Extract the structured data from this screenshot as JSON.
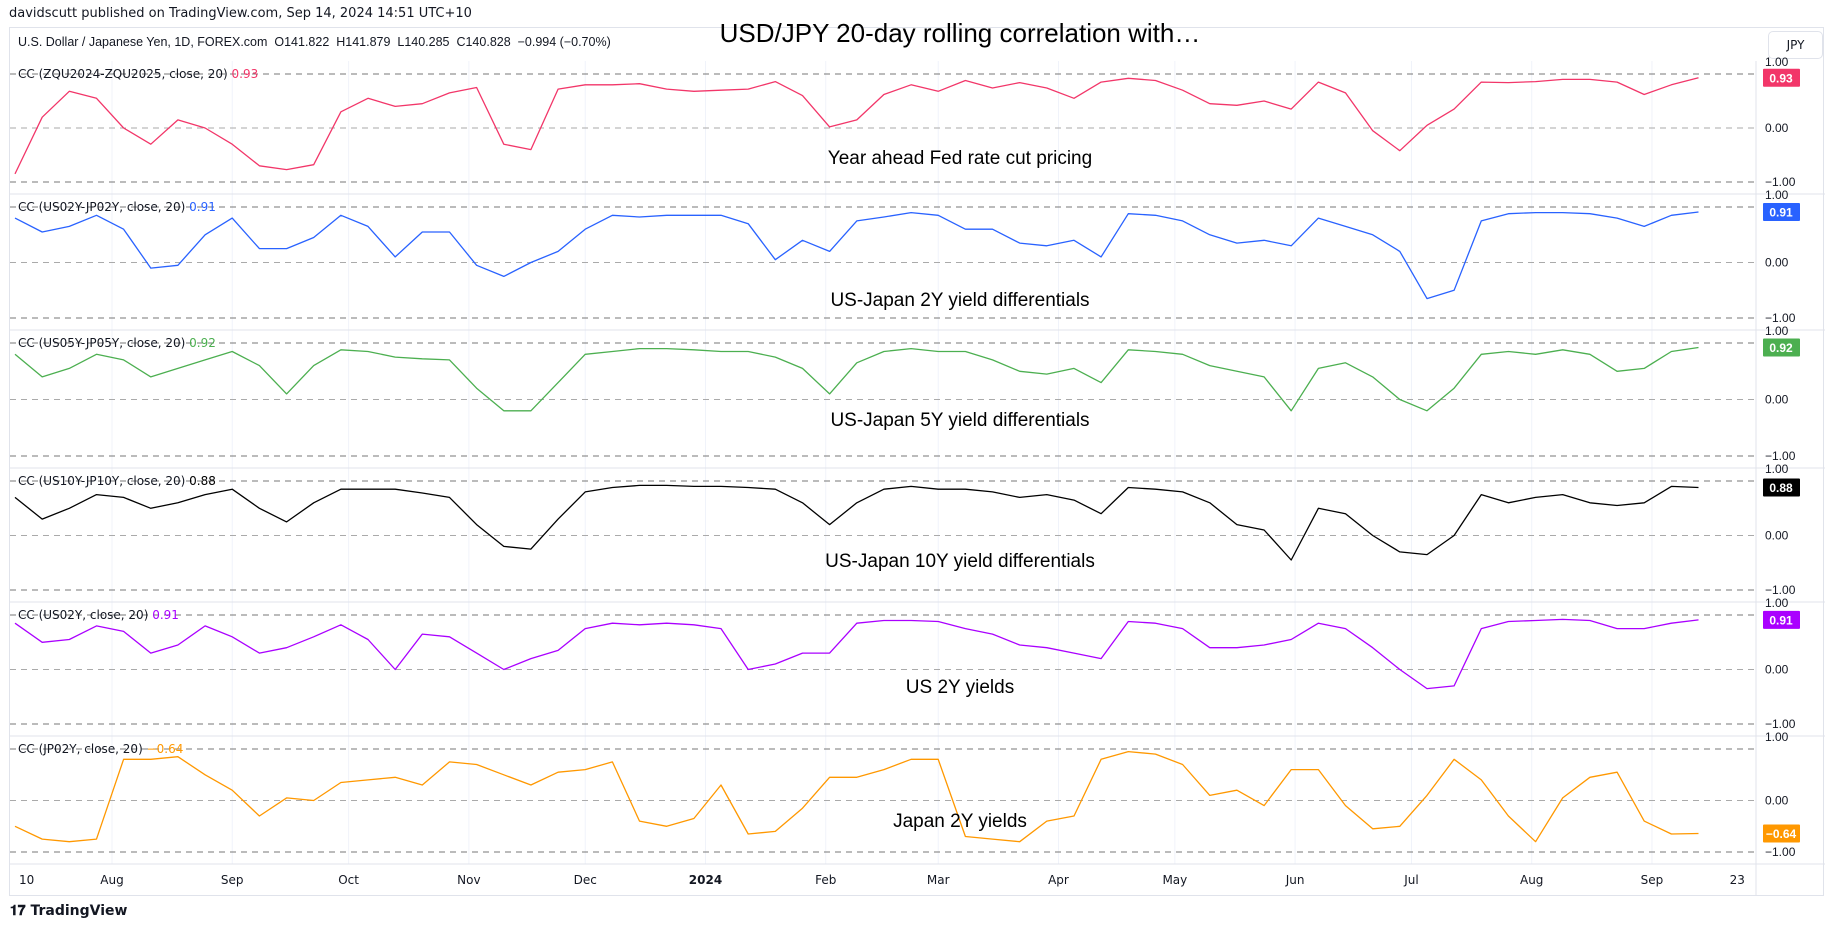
{
  "header": {
    "publisher": "davidscutt published on TradingView.com, Sep 14, 2024 14:51 UTC+10",
    "title": "USD/JPY 20-day rolling correlation with…",
    "symbol": "U.S. Dollar / Japanese Yen, 1D, FOREX.com  O141.822  H141.879  L140.285  C140.828  −0.994 (−0.70%)",
    "currency": "JPY"
  },
  "footer": {
    "logo": "TradingView"
  },
  "chart_data": {
    "type": "line",
    "x": [
      "2023-07-07",
      "2023-07-14",
      "2023-07-21",
      "2023-07-28",
      "2023-08-04",
      "2023-08-11",
      "2023-08-18",
      "2023-08-25",
      "2023-09-01",
      "2023-09-08",
      "2023-09-15",
      "2023-09-22",
      "2023-09-29",
      "2023-10-06",
      "2023-10-13",
      "2023-10-20",
      "2023-10-27",
      "2023-11-03",
      "2023-11-10",
      "2023-11-17",
      "2023-11-24",
      "2023-12-01",
      "2023-12-08",
      "2023-12-15",
      "2023-12-22",
      "2023-12-29",
      "2024-01-05",
      "2024-01-12",
      "2024-01-19",
      "2024-01-26",
      "2024-02-02",
      "2024-02-09",
      "2024-02-16",
      "2024-02-23",
      "2024-03-01",
      "2024-03-08",
      "2024-03-15",
      "2024-03-22",
      "2024-03-29",
      "2024-04-05",
      "2024-04-12",
      "2024-04-19",
      "2024-04-26",
      "2024-05-03",
      "2024-05-10",
      "2024-05-17",
      "2024-05-24",
      "2024-05-31",
      "2024-06-07",
      "2024-06-14",
      "2024-06-21",
      "2024-06-28",
      "2024-07-05",
      "2024-07-12",
      "2024-07-19",
      "2024-07-26",
      "2024-08-02",
      "2024-08-09",
      "2024-08-16",
      "2024-08-23",
      "2024-08-30",
      "2024-09-06",
      "2024-09-13"
    ],
    "ylim": [
      -1,
      1
    ],
    "yticks": [
      "1.00",
      "0.00",
      "−1.00"
    ],
    "xticks": [
      {
        "date": "2023-07-10",
        "label": "10"
      },
      {
        "date": "2023-08-01",
        "label": "Aug"
      },
      {
        "date": "2023-09-01",
        "label": "Sep"
      },
      {
        "date": "2023-10-01",
        "label": "Oct"
      },
      {
        "date": "2023-11-01",
        "label": "Nov"
      },
      {
        "date": "2023-12-01",
        "label": "Dec"
      },
      {
        "date": "2024-01-01",
        "label": "2024"
      },
      {
        "date": "2024-02-01",
        "label": "Feb"
      },
      {
        "date": "2024-03-01",
        "label": "Mar"
      },
      {
        "date": "2024-04-01",
        "label": "Apr"
      },
      {
        "date": "2024-05-01",
        "label": "May"
      },
      {
        "date": "2024-06-01",
        "label": "Jun"
      },
      {
        "date": "2024-07-01",
        "label": "Jul"
      },
      {
        "date": "2024-08-01",
        "label": "Aug"
      },
      {
        "date": "2024-09-01",
        "label": "Sep"
      },
      {
        "date": "2024-09-23",
        "label": "23"
      }
    ],
    "grid": true,
    "series": [
      {
        "name": "CC (ZQU2024-ZQU2025, close, 20)",
        "last": "0.93",
        "color": "#f23669",
        "annotation": "Year ahead Fed rate cut pricing",
        "values": [
          -0.85,
          0.2,
          0.68,
          0.55,
          0.0,
          -0.3,
          0.15,
          0.0,
          -0.3,
          -0.7,
          -0.77,
          -0.68,
          0.3,
          0.55,
          0.4,
          0.45,
          0.65,
          0.75,
          -0.3,
          -0.4,
          0.72,
          0.8,
          0.8,
          0.82,
          0.72,
          0.68,
          0.7,
          0.72,
          0.86,
          0.6,
          0.02,
          0.15,
          0.62,
          0.8,
          0.68,
          0.88,
          0.74,
          0.84,
          0.74,
          0.55,
          0.85,
          0.92,
          0.88,
          0.7,
          0.45,
          0.42,
          0.5,
          0.35,
          0.85,
          0.65,
          -0.05,
          -0.42,
          0.05,
          0.35,
          0.85,
          0.84,
          0.86,
          0.9,
          0.9,
          0.85,
          0.62,
          0.8,
          0.93
        ]
      },
      {
        "name": "CC (US02Y-JP02Y, close, 20)",
        "last": "0.91",
        "color": "#2962ff",
        "annotation": "US-Japan 2Y yield differentials",
        "values": [
          0.8,
          0.55,
          0.65,
          0.85,
          0.6,
          -0.1,
          -0.05,
          0.5,
          0.8,
          0.25,
          0.25,
          0.45,
          0.85,
          0.65,
          0.1,
          0.55,
          0.55,
          -0.05,
          -0.25,
          0.0,
          0.2,
          0.6,
          0.85,
          0.82,
          0.85,
          0.85,
          0.85,
          0.7,
          0.05,
          0.4,
          0.2,
          0.75,
          0.82,
          0.9,
          0.85,
          0.6,
          0.6,
          0.35,
          0.3,
          0.4,
          0.1,
          0.88,
          0.85,
          0.75,
          0.5,
          0.35,
          0.4,
          0.3,
          0.8,
          0.65,
          0.5,
          0.2,
          -0.65,
          -0.5,
          0.75,
          0.88,
          0.9,
          0.9,
          0.88,
          0.8,
          0.65,
          0.85,
          0.91
        ]
      },
      {
        "name": "CC (US05Y-JP05Y, close, 20)",
        "last": "0.92",
        "color": "#4caf50",
        "annotation": "US-Japan 5Y yield differentials",
        "values": [
          0.8,
          0.4,
          0.55,
          0.8,
          0.7,
          0.4,
          0.55,
          0.7,
          0.85,
          0.6,
          0.1,
          0.6,
          0.88,
          0.85,
          0.75,
          0.72,
          0.7,
          0.2,
          -0.2,
          -0.2,
          0.3,
          0.8,
          0.85,
          0.9,
          0.9,
          0.88,
          0.85,
          0.85,
          0.75,
          0.55,
          0.1,
          0.65,
          0.85,
          0.9,
          0.85,
          0.85,
          0.7,
          0.5,
          0.45,
          0.55,
          0.3,
          0.88,
          0.85,
          0.8,
          0.6,
          0.5,
          0.4,
          -0.2,
          0.55,
          0.65,
          0.4,
          0.0,
          -0.2,
          0.2,
          0.8,
          0.85,
          0.8,
          0.88,
          0.8,
          0.5,
          0.55,
          0.85,
          0.92
        ]
      },
      {
        "name": "CC (US10Y-JP10Y, close, 20)",
        "last": "0.88",
        "color": "#000000",
        "annotation": "US-Japan 10Y yield differentials",
        "values": [
          0.7,
          0.3,
          0.5,
          0.75,
          0.7,
          0.5,
          0.6,
          0.75,
          0.85,
          0.5,
          0.25,
          0.6,
          0.85,
          0.85,
          0.85,
          0.78,
          0.7,
          0.2,
          -0.2,
          -0.25,
          0.3,
          0.8,
          0.88,
          0.92,
          0.92,
          0.9,
          0.9,
          0.88,
          0.85,
          0.6,
          0.2,
          0.6,
          0.85,
          0.9,
          0.85,
          0.85,
          0.8,
          0.7,
          0.75,
          0.65,
          0.4,
          0.88,
          0.85,
          0.8,
          0.6,
          0.2,
          0.1,
          -0.45,
          0.5,
          0.4,
          0.0,
          -0.3,
          -0.35,
          0.0,
          0.75,
          0.6,
          0.7,
          0.75,
          0.6,
          0.55,
          0.6,
          0.9,
          0.88
        ]
      },
      {
        "name": "CC (US02Y, close, 20)",
        "last": "0.91",
        "color": "#aa00ff",
        "annotation": "US 2Y yields",
        "values": [
          0.85,
          0.5,
          0.55,
          0.8,
          0.7,
          0.3,
          0.45,
          0.8,
          0.6,
          0.3,
          0.4,
          0.6,
          0.82,
          0.55,
          0.0,
          0.65,
          0.6,
          0.3,
          0.0,
          0.2,
          0.35,
          0.75,
          0.85,
          0.82,
          0.85,
          0.82,
          0.75,
          0.0,
          0.1,
          0.3,
          0.3,
          0.85,
          0.9,
          0.9,
          0.88,
          0.75,
          0.65,
          0.45,
          0.4,
          0.3,
          0.2,
          0.88,
          0.85,
          0.75,
          0.4,
          0.4,
          0.45,
          0.55,
          0.85,
          0.75,
          0.4,
          0.0,
          -0.35,
          -0.3,
          0.75,
          0.88,
          0.9,
          0.92,
          0.9,
          0.75,
          0.75,
          0.85,
          0.91
        ]
      },
      {
        "name": "CC (JP02Y, close, 20)",
        "last": "−0.64",
        "color": "#ff9800",
        "annotation": "Japan 2Y yields",
        "values": [
          -0.5,
          -0.75,
          -0.8,
          -0.75,
          0.8,
          0.8,
          0.85,
          0.5,
          0.2,
          -0.3,
          0.05,
          0.0,
          0.35,
          0.4,
          0.45,
          0.3,
          0.75,
          0.7,
          0.5,
          0.3,
          0.55,
          0.6,
          0.75,
          -0.4,
          -0.5,
          -0.35,
          0.3,
          -0.65,
          -0.6,
          -0.15,
          0.45,
          0.45,
          0.6,
          0.8,
          0.8,
          -0.7,
          -0.75,
          -0.8,
          -0.4,
          -0.3,
          0.8,
          0.95,
          0.9,
          0.7,
          0.1,
          0.2,
          -0.1,
          0.6,
          0.6,
          -0.1,
          -0.55,
          -0.5,
          0.1,
          0.8,
          0.4,
          -0.3,
          -0.8,
          0.05,
          0.45,
          0.55,
          -0.4,
          -0.65,
          -0.64
        ]
      }
    ]
  }
}
